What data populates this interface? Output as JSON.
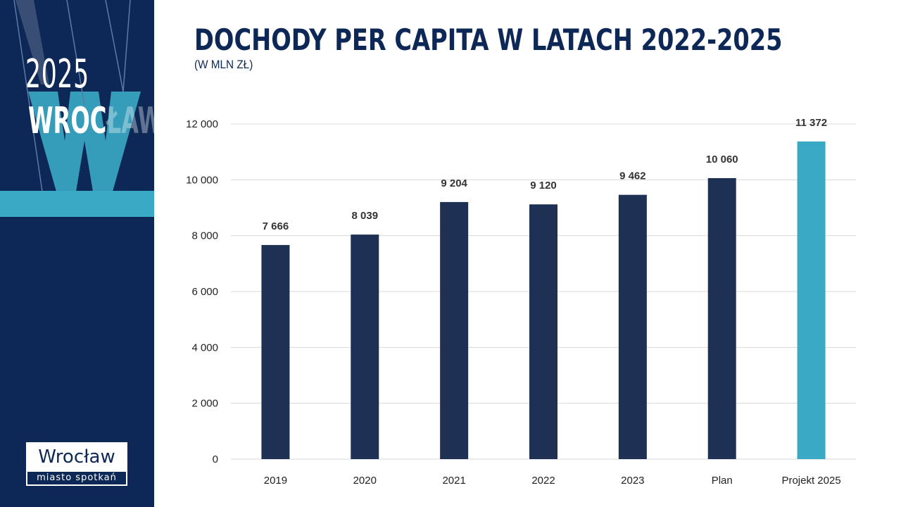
{
  "sidebar": {
    "year": "2025",
    "city_main": "WROC",
    "city_faded": "ŁAW",
    "logo_name": "Wrocław",
    "logo_sub": "miasto spotkań"
  },
  "colors": {
    "navy": "#0d2856",
    "bar": "#1e3154",
    "accent": "#3aa9c5"
  },
  "chart_data": {
    "type": "bar",
    "title": "DOCHODY PER CAPITA W LATACH 2022-2025",
    "subtitle": "(W MLN ZŁ)",
    "categories": [
      "2019",
      "2020",
      "2021",
      "2022",
      "2023",
      "Plan",
      "Projekt 2025"
    ],
    "values": [
      7666,
      8039,
      9204,
      9120,
      9462,
      10060,
      11372
    ],
    "value_labels": [
      "7 666",
      "8 039",
      "9 204",
      "9 120",
      "9 462",
      "10 060",
      "11 372"
    ],
    "highlight_index": 6,
    "ylim": [
      0,
      12000
    ],
    "yticks": [
      0,
      2000,
      4000,
      6000,
      8000,
      10000,
      12000
    ],
    "ytick_labels": [
      "0",
      "2 000",
      "4 000",
      "6 000",
      "8 000",
      "10 000",
      "12 000"
    ],
    "grid": true,
    "legend": "none"
  }
}
